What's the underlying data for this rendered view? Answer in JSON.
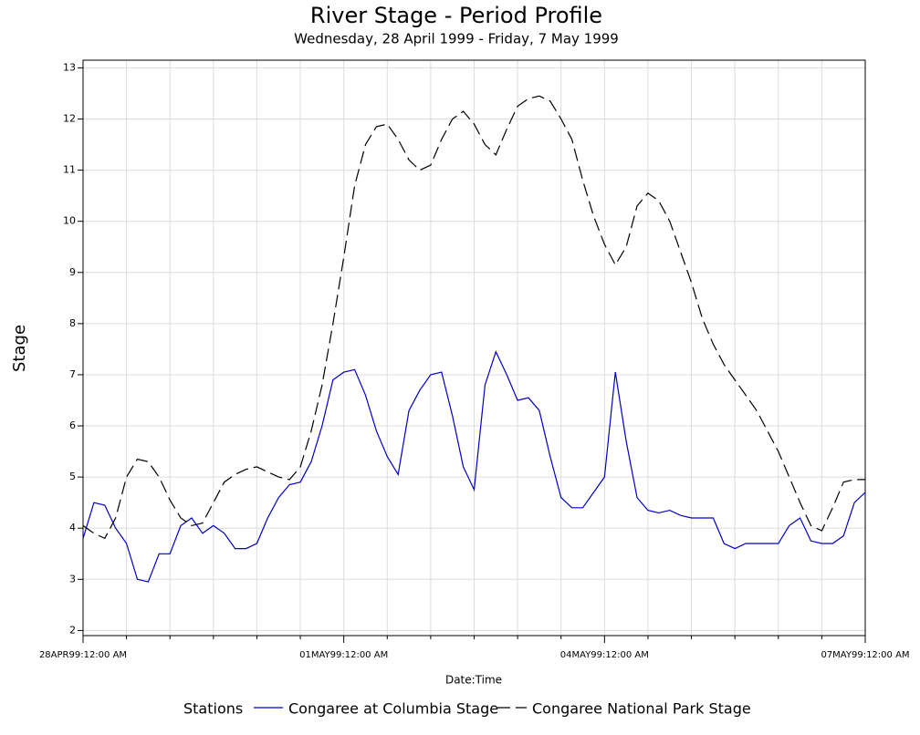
{
  "chart_data": {
    "type": "line",
    "title": "River Stage - Period Profile",
    "subtitle": "Wednesday, 28 April 1999 - Friday, 7 May 1999",
    "y_label": "Stage",
    "x_label": "Date:Time",
    "legend_title": "Stations",
    "legend": "bottom",
    "grid": true,
    "xlim": [
      "1999-04-28T00:00",
      "1999-05-07T00:00"
    ],
    "xticks": [
      {
        "value": "1999-04-28T00:00",
        "label": "28APR99:12:00 AM"
      },
      {
        "value": "1999-05-01T00:00",
        "label": "01MAY99:12:00 AM"
      },
      {
        "value": "1999-05-04T00:00",
        "label": "04MAY99:12:00 AM"
      },
      {
        "value": "1999-05-07T00:00",
        "label": "07MAY99:12:00 AM"
      }
    ],
    "x_minor_ticks": [
      "1999-04-28T12:00",
      "1999-04-29T00:00",
      "1999-04-29T12:00",
      "1999-04-30T00:00",
      "1999-04-30T12:00",
      "1999-05-01T12:00",
      "1999-05-02T00:00",
      "1999-05-02T12:00",
      "1999-05-03T00:00",
      "1999-05-03T12:00",
      "1999-05-04T12:00",
      "1999-05-05T00:00",
      "1999-05-05T12:00",
      "1999-05-06T00:00",
      "1999-05-06T12:00"
    ],
    "ylim": [
      1.9,
      13.15
    ],
    "yticks": [
      2,
      3,
      4,
      5,
      6,
      7,
      8,
      9,
      10,
      11,
      12,
      13
    ],
    "x": [
      "1999-04-28T00:00",
      "1999-04-28T03:00",
      "1999-04-28T06:00",
      "1999-04-28T09:00",
      "1999-04-28T12:00",
      "1999-04-28T15:00",
      "1999-04-28T18:00",
      "1999-04-28T21:00",
      "1999-04-29T00:00",
      "1999-04-29T03:00",
      "1999-04-29T06:00",
      "1999-04-29T09:00",
      "1999-04-29T12:00",
      "1999-04-29T15:00",
      "1999-04-29T18:00",
      "1999-04-29T21:00",
      "1999-04-30T00:00",
      "1999-04-30T03:00",
      "1999-04-30T06:00",
      "1999-04-30T09:00",
      "1999-04-30T12:00",
      "1999-04-30T15:00",
      "1999-04-30T18:00",
      "1999-04-30T21:00",
      "1999-05-01T00:00",
      "1999-05-01T03:00",
      "1999-05-01T06:00",
      "1999-05-01T09:00",
      "1999-05-01T12:00",
      "1999-05-01T15:00",
      "1999-05-01T18:00",
      "1999-05-01T21:00",
      "1999-05-02T00:00",
      "1999-05-02T03:00",
      "1999-05-02T06:00",
      "1999-05-02T09:00",
      "1999-05-02T12:00",
      "1999-05-02T15:00",
      "1999-05-02T18:00",
      "1999-05-02T21:00",
      "1999-05-03T00:00",
      "1999-05-03T03:00",
      "1999-05-03T06:00",
      "1999-05-03T09:00",
      "1999-05-03T12:00",
      "1999-05-03T15:00",
      "1999-05-03T18:00",
      "1999-05-03T21:00",
      "1999-05-04T00:00",
      "1999-05-04T03:00",
      "1999-05-04T06:00",
      "1999-05-04T09:00",
      "1999-05-04T12:00",
      "1999-05-04T15:00",
      "1999-05-04T18:00",
      "1999-05-04T21:00",
      "1999-05-05T00:00",
      "1999-05-05T03:00",
      "1999-05-05T06:00",
      "1999-05-05T09:00",
      "1999-05-05T12:00",
      "1999-05-05T15:00",
      "1999-05-05T18:00",
      "1999-05-05T21:00",
      "1999-05-06T00:00",
      "1999-05-06T03:00",
      "1999-05-06T06:00",
      "1999-05-06T09:00",
      "1999-05-06T12:00",
      "1999-05-06T15:00",
      "1999-05-06T18:00",
      "1999-05-06T21:00",
      "1999-05-07T00:00"
    ],
    "series": [
      {
        "name": "Congaree at Columbia Stage",
        "color": "#0000c0",
        "dash": "solid",
        "values": [
          3.8,
          4.5,
          4.45,
          4.0,
          3.7,
          3.0,
          2.95,
          3.5,
          3.5,
          4.05,
          4.2,
          3.9,
          4.05,
          3.9,
          3.6,
          3.6,
          3.7,
          4.2,
          4.6,
          4.85,
          4.9,
          5.3,
          6.0,
          6.9,
          7.05,
          7.1,
          6.6,
          5.9,
          5.4,
          5.05,
          6.3,
          6.7,
          7.0,
          7.05,
          6.2,
          5.2,
          4.75,
          6.8,
          7.45,
          7.0,
          6.5,
          6.55,
          6.3,
          5.4,
          4.6,
          4.4,
          4.4,
          4.7,
          5.0,
          7.05,
          5.7,
          4.6,
          4.35,
          4.3,
          4.35,
          4.25,
          4.2,
          4.2,
          4.2,
          3.7,
          3.6,
          3.7,
          3.7,
          3.7,
          3.7,
          4.05,
          4.2,
          3.75,
          3.7,
          3.7,
          3.85,
          4.5,
          4.7
        ]
      },
      {
        "name": "Congaree National Park Stage",
        "color": "#000000",
        "dash": "dashed",
        "values": [
          4.05,
          3.9,
          3.8,
          4.2,
          5.0,
          5.35,
          5.3,
          5.0,
          4.55,
          4.2,
          4.05,
          4.1,
          4.5,
          4.9,
          5.05,
          5.15,
          5.2,
          5.1,
          5.0,
          4.95,
          5.2,
          5.9,
          6.8,
          8.0,
          9.3,
          10.7,
          11.5,
          11.85,
          11.9,
          11.6,
          11.2,
          11.0,
          11.1,
          11.6,
          12.0,
          12.15,
          11.9,
          11.5,
          11.3,
          11.8,
          12.25,
          12.4,
          12.45,
          12.35,
          12.0,
          11.6,
          10.8,
          10.1,
          9.55,
          9.15,
          9.5,
          10.3,
          10.55,
          10.4,
          10.0,
          9.4,
          8.8,
          8.1,
          7.6,
          7.2,
          6.9,
          6.6,
          6.3,
          5.9,
          5.5,
          5.0,
          4.5,
          4.05,
          3.95,
          4.4,
          4.9,
          4.95,
          4.95
        ]
      }
    ]
  }
}
